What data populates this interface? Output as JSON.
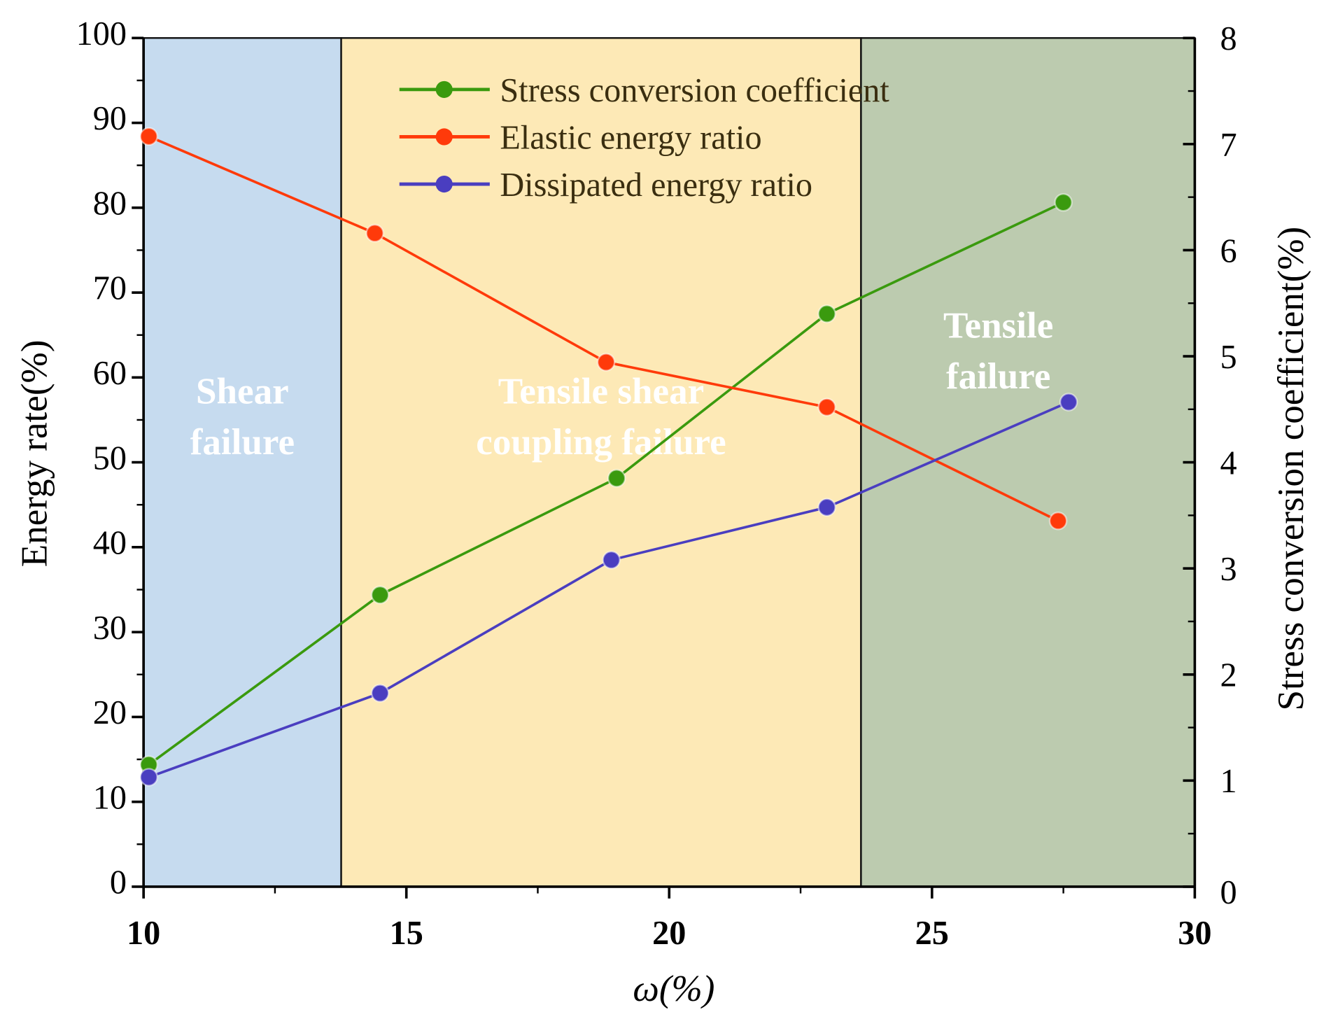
{
  "chart_data": {
    "type": "line",
    "xlabel": "ω(%)",
    "ylabel": "Energy rate(%)",
    "y2label": "Stress conversion coefficient(%)",
    "xlim": [
      10,
      30
    ],
    "ylim": [
      0,
      100
    ],
    "y2lim": [
      0,
      8
    ],
    "xticks": [
      10,
      15,
      20,
      25,
      30
    ],
    "yticks": [
      0,
      10,
      20,
      30,
      40,
      50,
      60,
      70,
      80,
      90,
      100
    ],
    "y2ticks": [
      0,
      1,
      2,
      3,
      4,
      5,
      6,
      7,
      8
    ],
    "legend_position": "top-center",
    "regions": [
      {
        "lines": [
          "Shear",
          "failure"
        ],
        "from": 10,
        "to": 13.76,
        "color": "#c6dbef"
      },
      {
        "lines": [
          "Tensile shear",
          "coupling failure"
        ],
        "from": 13.76,
        "to": 23.65,
        "color": "#fde9b6"
      },
      {
        "lines": [
          "Tensile",
          "failure"
        ],
        "from": 23.65,
        "to": 30,
        "color": "#bccbaf"
      }
    ],
    "series": [
      {
        "name": "Stress conversion coefficient",
        "axis": "right",
        "color": "#3a9a0e",
        "x": [
          10.1,
          14.5,
          19.0,
          23.0,
          27.5
        ],
        "values": [
          1.15,
          2.75,
          3.85,
          5.4,
          6.45
        ]
      },
      {
        "name": "Elastic energy ratio",
        "axis": "left",
        "color": "#ff3a0a",
        "x": [
          10.1,
          14.4,
          18.8,
          23.0,
          27.4
        ],
        "values": [
          88.4,
          77.0,
          61.8,
          56.5,
          43.1
        ]
      },
      {
        "name": "Dissipated energy ratio",
        "axis": "left",
        "color": "#4a3ec0",
        "x": [
          10.1,
          14.5,
          18.9,
          23.0,
          27.6
        ],
        "values": [
          12.9,
          22.8,
          38.5,
          44.7,
          57.1
        ]
      }
    ]
  }
}
